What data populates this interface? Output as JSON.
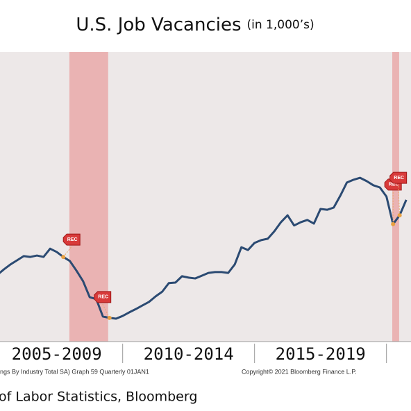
{
  "chart_data": {
    "type": "line",
    "title": "U.S. Job Vacancies",
    "subtitle": "(in 1,000’s)",
    "x": [
      2005.25,
      2005.5,
      2005.75,
      2006,
      2006.25,
      2006.5,
      2006.75,
      2007,
      2007.25,
      2007.5,
      2007.75,
      2008,
      2008.25,
      2008.5,
      2008.75,
      2009,
      2009.25,
      2009.5,
      2009.75,
      2010,
      2010.25,
      2010.5,
      2010.75,
      2011,
      2011.25,
      2011.5,
      2011.75,
      2012,
      2012.25,
      2012.5,
      2012.75,
      2013,
      2013.25,
      2013.5,
      2013.75,
      2014,
      2014.25,
      2014.5,
      2014.75,
      2015,
      2015.25,
      2015.5,
      2015.75,
      2016,
      2016.25,
      2016.5,
      2016.75,
      2017,
      2017.25,
      2017.5,
      2017.75,
      2018,
      2018.25,
      2018.5,
      2018.75,
      2019,
      2019.25,
      2019.5,
      2019.75,
      2020,
      2020.25,
      2020.5,
      2020.75
    ],
    "series": [
      {
        "color": "#2b4a72",
        "values": [
          3720,
          3920,
          4100,
          4250,
          4400,
          4370,
          4420,
          4370,
          4670,
          4550,
          4370,
          4220,
          3870,
          3490,
          2910,
          2840,
          2210,
          2160,
          2130,
          2230,
          2360,
          2480,
          2610,
          2740,
          2940,
          3110,
          3420,
          3440,
          3670,
          3620,
          3590,
          3690,
          3790,
          3820,
          3820,
          3790,
          4100,
          4720,
          4620,
          4880,
          4980,
          5030,
          5300,
          5630,
          5880,
          5510,
          5630,
          5710,
          5580,
          6110,
          6080,
          6160,
          6590,
          7070,
          7170,
          7240,
          7120,
          6970,
          6890,
          6560,
          5560,
          5880,
          6440
        ]
      }
    ],
    "xlim": [
      2005.35,
      2020.93
    ],
    "ylim": [
      1300,
      11800
    ],
    "xticks": [
      2010,
      2015,
      2020
    ],
    "period_labels": [
      "2005-2009",
      "2010-2014",
      "2015-2019"
    ],
    "recessions": [
      {
        "start": 2007.98,
        "end": 2009.45
      },
      {
        "start": 2020.22,
        "end": 2020.48
      }
    ],
    "annotations": [
      {
        "label": "REC",
        "x": 2007.75
      },
      {
        "label": "REC",
        "x": 2009.5
      },
      {
        "label": "REC",
        "x": 2020.25
      },
      {
        "label": "REC",
        "x": 2020.5
      }
    ],
    "footnote": "ings By Industry Total SA) Graph 59  Quarterly 01JAN1",
    "copyright": "Copyright© 2021 Bloomberg Finance L.P.",
    "source": "of Labor Statistics, Bloomberg"
  }
}
